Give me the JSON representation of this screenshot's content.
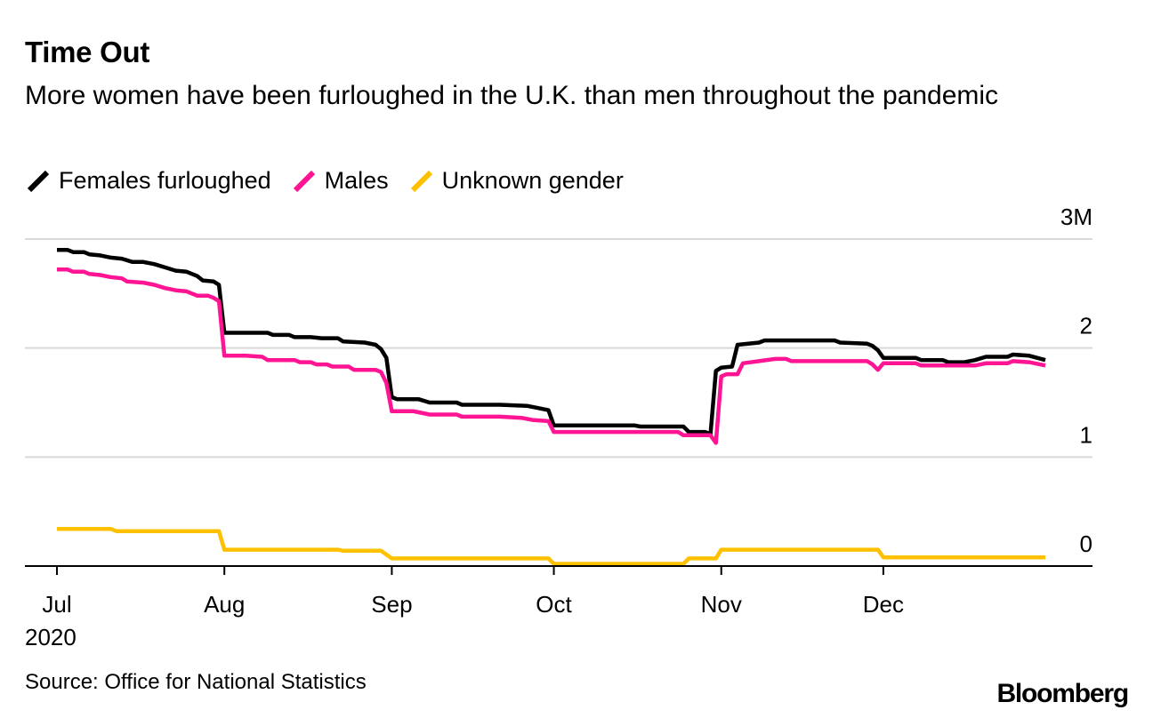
{
  "header": {
    "title": "Time Out",
    "subtitle": "More women have been furloughed in the U.K. than men throughout the pandemic"
  },
  "footer": {
    "source": "Source: Office for National Statistics",
    "brand": "Bloomberg"
  },
  "chart_data": {
    "type": "line",
    "title": "Time Out",
    "subtitle": "More women have been furloughed in the U.K. than men throughout the pandemic",
    "xlabel": "",
    "ylabel": "",
    "x_range": [
      0,
      183
    ],
    "ylim": [
      0,
      3
    ],
    "y_unit_label": "3M",
    "x_ticks": [
      {
        "day": 0,
        "label": "Jul"
      },
      {
        "day": 31,
        "label": "Aug"
      },
      {
        "day": 62,
        "label": "Sep"
      },
      {
        "day": 92,
        "label": "Oct"
      },
      {
        "day": 123,
        "label": "Nov"
      },
      {
        "day": 153,
        "label": "Dec"
      }
    ],
    "x_year_label": "2020",
    "y_ticks": [
      {
        "value": 0,
        "label": "0"
      },
      {
        "value": 1,
        "label": "1"
      },
      {
        "value": 2,
        "label": "2"
      },
      {
        "value": 3,
        "label": "3M"
      }
    ],
    "legend_position": "top-left",
    "grid": true,
    "series": [
      {
        "name": "Females furloughed",
        "color": "#000000",
        "points": [
          [
            0,
            2.9
          ],
          [
            2,
            2.9
          ],
          [
            3,
            2.88
          ],
          [
            5,
            2.88
          ],
          [
            6,
            2.86
          ],
          [
            8,
            2.85
          ],
          [
            10,
            2.83
          ],
          [
            12,
            2.82
          ],
          [
            14,
            2.79
          ],
          [
            16,
            2.79
          ],
          [
            18,
            2.77
          ],
          [
            20,
            2.74
          ],
          [
            22,
            2.71
          ],
          [
            24,
            2.7
          ],
          [
            26,
            2.66
          ],
          [
            27,
            2.62
          ],
          [
            29,
            2.61
          ],
          [
            30,
            2.58
          ],
          [
            31,
            2.14
          ],
          [
            33,
            2.14
          ],
          [
            39,
            2.14
          ],
          [
            40,
            2.12
          ],
          [
            43,
            2.12
          ],
          [
            44,
            2.1
          ],
          [
            47,
            2.1
          ],
          [
            49,
            2.09
          ],
          [
            52,
            2.09
          ],
          [
            53,
            2.06
          ],
          [
            57,
            2.05
          ],
          [
            59,
            2.03
          ],
          [
            60,
            1.99
          ],
          [
            61,
            1.91
          ],
          [
            62,
            1.55
          ],
          [
            63,
            1.53
          ],
          [
            67,
            1.53
          ],
          [
            69,
            1.5
          ],
          [
            74,
            1.5
          ],
          [
            75,
            1.48
          ],
          [
            82,
            1.48
          ],
          [
            87,
            1.47
          ],
          [
            89,
            1.45
          ],
          [
            91,
            1.43
          ],
          [
            92,
            1.29
          ],
          [
            107,
            1.29
          ],
          [
            108,
            1.28
          ],
          [
            116,
            1.28
          ],
          [
            117,
            1.23
          ],
          [
            120,
            1.23
          ],
          [
            121,
            1.21
          ],
          [
            122,
            1.79
          ],
          [
            123,
            1.82
          ],
          [
            125,
            1.83
          ],
          [
            126,
            2.03
          ],
          [
            130,
            2.05
          ],
          [
            131,
            2.07
          ],
          [
            144,
            2.07
          ],
          [
            145,
            2.05
          ],
          [
            150,
            2.04
          ],
          [
            151,
            2.02
          ],
          [
            152,
            1.98
          ],
          [
            153,
            1.91
          ],
          [
            159,
            1.91
          ],
          [
            160,
            1.89
          ],
          [
            164,
            1.89
          ],
          [
            165,
            1.87
          ],
          [
            168,
            1.87
          ],
          [
            170,
            1.89
          ],
          [
            172,
            1.92
          ],
          [
            176,
            1.92
          ],
          [
            177,
            1.94
          ],
          [
            180,
            1.93
          ],
          [
            183,
            1.89
          ]
        ]
      },
      {
        "name": "Males",
        "color": "#ff1493",
        "points": [
          [
            0,
            2.72
          ],
          [
            2,
            2.72
          ],
          [
            3,
            2.7
          ],
          [
            5,
            2.7
          ],
          [
            6,
            2.68
          ],
          [
            8,
            2.67
          ],
          [
            10,
            2.65
          ],
          [
            12,
            2.64
          ],
          [
            13,
            2.61
          ],
          [
            16,
            2.6
          ],
          [
            18,
            2.58
          ],
          [
            20,
            2.55
          ],
          [
            22,
            2.53
          ],
          [
            24,
            2.52
          ],
          [
            26,
            2.48
          ],
          [
            28,
            2.48
          ],
          [
            29,
            2.46
          ],
          [
            30,
            2.43
          ],
          [
            31,
            1.93
          ],
          [
            35,
            1.93
          ],
          [
            38,
            1.92
          ],
          [
            39,
            1.89
          ],
          [
            44,
            1.89
          ],
          [
            45,
            1.87
          ],
          [
            47,
            1.87
          ],
          [
            48,
            1.85
          ],
          [
            50,
            1.85
          ],
          [
            51,
            1.83
          ],
          [
            54,
            1.83
          ],
          [
            55,
            1.8
          ],
          [
            59,
            1.8
          ],
          [
            60,
            1.78
          ],
          [
            61,
            1.68
          ],
          [
            62,
            1.42
          ],
          [
            66,
            1.42
          ],
          [
            67,
            1.41
          ],
          [
            69,
            1.39
          ],
          [
            74,
            1.39
          ],
          [
            75,
            1.37
          ],
          [
            82,
            1.37
          ],
          [
            86,
            1.36
          ],
          [
            88,
            1.34
          ],
          [
            91,
            1.33
          ],
          [
            92,
            1.23
          ],
          [
            115,
            1.23
          ],
          [
            116,
            1.2
          ],
          [
            121,
            1.2
          ],
          [
            122,
            1.13
          ],
          [
            123,
            1.74
          ],
          [
            124,
            1.76
          ],
          [
            126,
            1.76
          ],
          [
            127,
            1.86
          ],
          [
            130,
            1.88
          ],
          [
            133,
            1.9
          ],
          [
            135,
            1.9
          ],
          [
            136,
            1.88
          ],
          [
            150,
            1.88
          ],
          [
            151,
            1.85
          ],
          [
            152,
            1.8
          ],
          [
            153,
            1.86
          ],
          [
            159,
            1.86
          ],
          [
            160,
            1.84
          ],
          [
            170,
            1.84
          ],
          [
            172,
            1.86
          ],
          [
            176,
            1.86
          ],
          [
            177,
            1.88
          ],
          [
            180,
            1.87
          ],
          [
            183,
            1.84
          ]
        ]
      },
      {
        "name": "Unknown gender",
        "color": "#ffc000",
        "points": [
          [
            0,
            0.34
          ],
          [
            10,
            0.34
          ],
          [
            11,
            0.32
          ],
          [
            30,
            0.32
          ],
          [
            31,
            0.15
          ],
          [
            52,
            0.15
          ],
          [
            53,
            0.14
          ],
          [
            60,
            0.14
          ],
          [
            62,
            0.07
          ],
          [
            91,
            0.07
          ],
          [
            92,
            0.02
          ],
          [
            116,
            0.02
          ],
          [
            117,
            0.07
          ],
          [
            122,
            0.07
          ],
          [
            123,
            0.15
          ],
          [
            152,
            0.15
          ],
          [
            153,
            0.08
          ],
          [
            183,
            0.08
          ]
        ]
      }
    ]
  }
}
